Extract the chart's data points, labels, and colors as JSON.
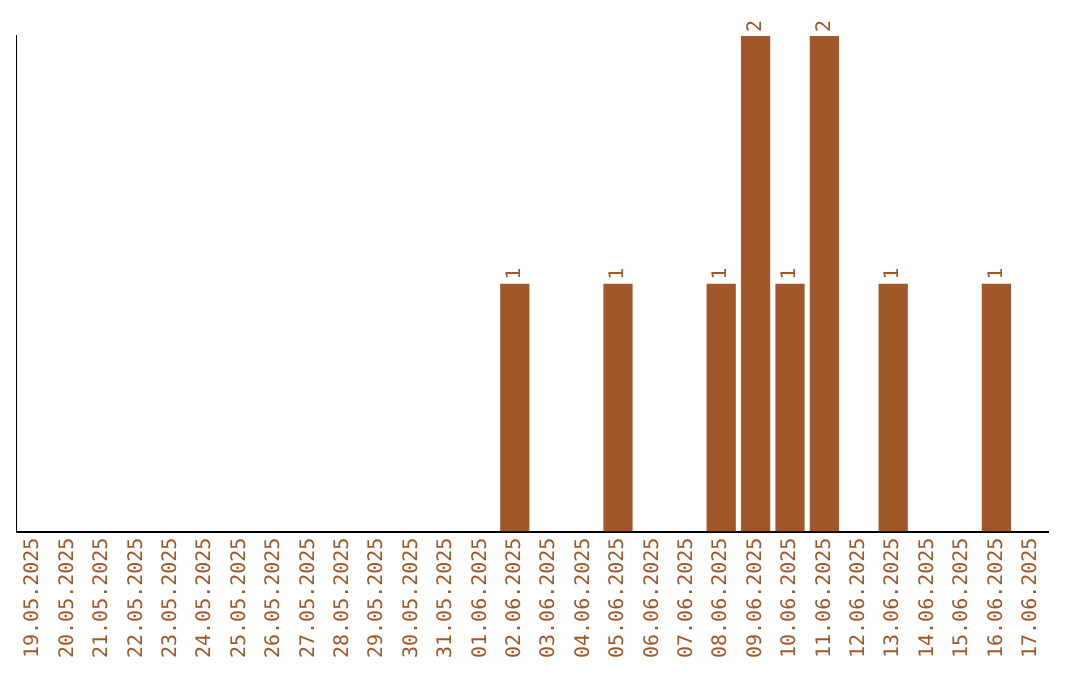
{
  "chart_data": {
    "type": "bar",
    "categories": [
      "19.05.2025",
      "20.05.2025",
      "21.05.2025",
      "22.05.2025",
      "23.05.2025",
      "24.05.2025",
      "25.05.2025",
      "26.05.2025",
      "27.05.2025",
      "28.05.2025",
      "29.05.2025",
      "30.05.2025",
      "31.05.2025",
      "01.06.2025",
      "02.06.2025",
      "03.06.2025",
      "04.06.2025",
      "05.06.2025",
      "06.06.2025",
      "07.06.2025",
      "08.06.2025",
      "09.06.2025",
      "10.06.2025",
      "11.06.2025",
      "12.06.2025",
      "13.06.2025",
      "14.06.2025",
      "15.06.2025",
      "16.06.2025",
      "17.06.2025"
    ],
    "values": [
      null,
      null,
      null,
      null,
      null,
      null,
      null,
      null,
      null,
      null,
      null,
      null,
      null,
      null,
      1,
      null,
      null,
      1,
      null,
      null,
      1,
      2,
      1,
      2,
      null,
      1,
      null,
      null,
      1,
      null
    ],
    "data_labels": true,
    "color": "#a0582a",
    "ylim": [
      0,
      2
    ],
    "grid": false,
    "legend": false,
    "tick_labels": "x"
  }
}
